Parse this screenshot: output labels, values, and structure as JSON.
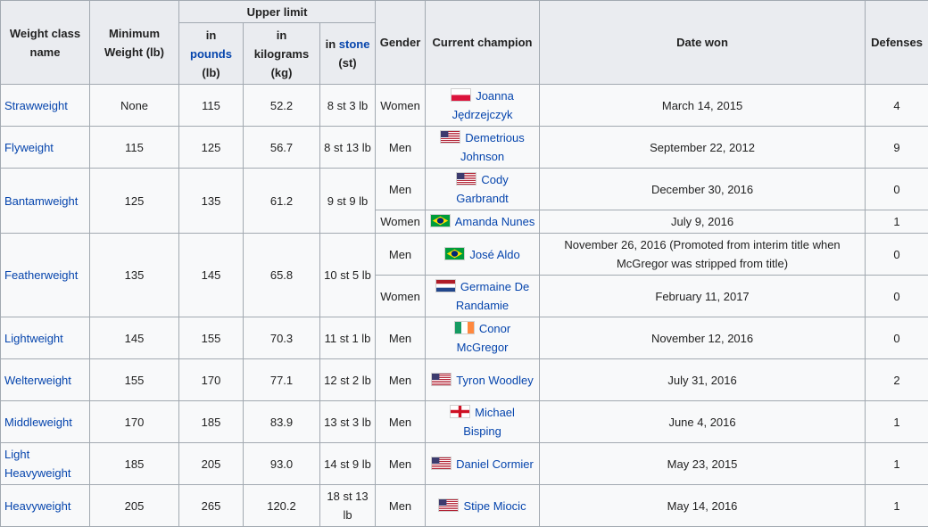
{
  "headers": {
    "weight_class_name": "Weight class name",
    "minimum_weight": "Minimum Weight (lb)",
    "upper_limit": "Upper limit",
    "in_word": "in",
    "pounds_link": "pounds",
    "pounds_unit": "(lb)",
    "kilograms": "kilograms",
    "kilograms_unit": "(kg)",
    "stone_link": "stone",
    "stone_unit": "(st)",
    "gender": "Gender",
    "current_champion": "Current champion",
    "date_won": "Date won",
    "defenses": "Defenses"
  },
  "rows": [
    {
      "name": "Strawweight",
      "min": "None",
      "lb": "115",
      "kg": "52.2",
      "st": "8 st 3 lb",
      "champs": [
        {
          "gender": "Women",
          "flag": "pl-flag-icon",
          "champion": "Joanna Jędrzejczyk",
          "date": "March 14, 2015",
          "defenses": "4"
        }
      ]
    },
    {
      "name": "Flyweight",
      "min": "115",
      "lb": "125",
      "kg": "56.7",
      "st": "8 st 13 lb",
      "champs": [
        {
          "gender": "Men",
          "flag": "us-flag-icon",
          "champion": "Demetrious Johnson",
          "date": "September 22, 2012",
          "defenses": "9"
        }
      ]
    },
    {
      "name": "Bantamweight",
      "min": "125",
      "lb": "135",
      "kg": "61.2",
      "st": "9 st 9 lb",
      "champs": [
        {
          "gender": "Men",
          "flag": "us-flag-icon",
          "champion": "Cody Garbrandt",
          "date": "December 30, 2016",
          "defenses": "0"
        },
        {
          "gender": "Women",
          "flag": "br-flag-icon",
          "champion": "Amanda Nunes",
          "date": "July 9, 2016",
          "defenses": "1"
        }
      ]
    },
    {
      "name": "Featherweight",
      "min": "135",
      "lb": "145",
      "kg": "65.8",
      "st": "10 st 5 lb",
      "champs": [
        {
          "gender": "Men",
          "flag": "br-flag-icon",
          "champion": "José Aldo",
          "date": "November 26, 2016 (Promoted from interim title when McGregor was stripped from title)",
          "defenses": "0"
        },
        {
          "gender": "Women",
          "flag": "nl-flag-icon",
          "champion": "Germaine De Randamie",
          "date": "February 11, 2017",
          "defenses": "0"
        }
      ]
    },
    {
      "name": "Lightweight",
      "min": "145",
      "lb": "155",
      "kg": "70.3",
      "st": "11 st 1 lb",
      "champs": [
        {
          "gender": "Men",
          "flag": "ie-flag-icon",
          "champion": "Conor McGregor",
          "date": "November 12, 2016",
          "defenses": "0"
        }
      ]
    },
    {
      "name": "Welterweight",
      "min": "155",
      "lb": "170",
      "kg": "77.1",
      "st": "12 st 2 lb",
      "champs": [
        {
          "gender": "Men",
          "flag": "us-flag-icon",
          "champion": "Tyron Woodley",
          "date": "July 31, 2016",
          "defenses": "2"
        }
      ]
    },
    {
      "name": "Middleweight",
      "min": "170",
      "lb": "185",
      "kg": "83.9",
      "st": "13 st 3 lb",
      "champs": [
        {
          "gender": "Men",
          "flag": "en-flag-icon",
          "champion": "Michael Bisping",
          "date": "June 4, 2016",
          "defenses": "1"
        }
      ]
    },
    {
      "name": "Light Heavyweight",
      "min": "185",
      "lb": "205",
      "kg": "93.0",
      "st": "14 st 9 lb",
      "champs": [
        {
          "gender": "Men",
          "flag": "us-flag-icon",
          "champion": "Daniel Cormier",
          "date": "May 23, 2015",
          "defenses": "1"
        }
      ]
    },
    {
      "name": "Heavyweight",
      "min": "205",
      "lb": "265",
      "kg": "120.2",
      "st": "18 st 13 lb",
      "champs": [
        {
          "gender": "Men",
          "flag": "us-flag-icon",
          "champion": "Stipe Miocic",
          "date": "May 14, 2016",
          "defenses": "1"
        }
      ]
    }
  ]
}
